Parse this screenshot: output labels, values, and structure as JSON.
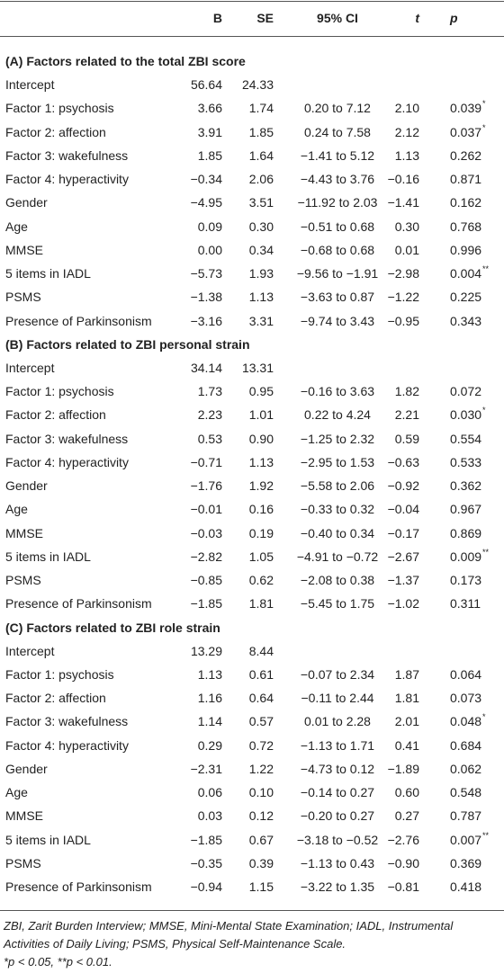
{
  "header": {
    "columns": [
      "B",
      "SE",
      "95% CI",
      "t",
      "p"
    ]
  },
  "sections": [
    {
      "title": "(A) Factors related to the total ZBI score",
      "rows": [
        [
          "Intercept",
          "56.64",
          "24.33"
        ],
        [
          "Factor 1: psychosis",
          "3.66",
          "1.74",
          "0.20 to 7.12",
          "2.10",
          "0.039",
          "*"
        ],
        [
          "Factor 2: affection",
          "3.91",
          "1.85",
          "0.24 to 7.58",
          "2.12",
          "0.037",
          "*"
        ],
        [
          "Factor 3: wakefulness",
          "1.85",
          "1.64",
          "−1.41 to 5.12",
          "1.13",
          "0.262"
        ],
        [
          "Factor 4: hyperactivity",
          "−0.34",
          "2.06",
          "−4.43 to 3.76",
          "−0.16",
          "0.871"
        ],
        [
          "Gender",
          "−4.95",
          "3.51",
          "−11.92 to 2.03",
          "−1.41",
          "0.162"
        ],
        [
          "Age",
          "0.09",
          "0.30",
          "−0.51 to 0.68",
          "0.30",
          "0.768"
        ],
        [
          "MMSE",
          "0.00",
          "0.34",
          "−0.68 to 0.68",
          "0.01",
          "0.996"
        ],
        [
          "5 items in IADL",
          "−5.73",
          "1.93",
          "−9.56 to −1.91",
          "−2.98",
          "0.004",
          "**"
        ],
        [
          "PSMS",
          "−1.38",
          "1.13",
          "−3.63 to 0.87",
          "−1.22",
          "0.225"
        ],
        [
          "Presence of Parkinsonism",
          "−3.16",
          "3.31",
          "−9.74 to 3.43",
          "−0.95",
          "0.343"
        ]
      ]
    },
    {
      "title": "(B) Factors related to ZBI personal strain",
      "rows": [
        [
          "Intercept",
          "34.14",
          "13.31"
        ],
        [
          "Factor 1: psychosis",
          "1.73",
          "0.95",
          "−0.16 to 3.63",
          "1.82",
          "0.072"
        ],
        [
          "Factor 2: affection",
          "2.23",
          "1.01",
          "0.22 to 4.24",
          "2.21",
          "0.030",
          "*"
        ],
        [
          "Factor 3: wakefulness",
          "0.53",
          "0.90",
          "−1.25 to 2.32",
          "0.59",
          "0.554"
        ],
        [
          "Factor 4: hyperactivity",
          "−0.71",
          "1.13",
          "−2.95 to 1.53",
          "−0.63",
          "0.533"
        ],
        [
          "Gender",
          "−1.76",
          "1.92",
          "−5.58 to 2.06",
          "−0.92",
          "0.362"
        ],
        [
          "Age",
          "−0.01",
          "0.16",
          "−0.33 to 0.32",
          "−0.04",
          "0.967"
        ],
        [
          "MMSE",
          "−0.03",
          "0.19",
          "−0.40 to 0.34",
          "−0.17",
          "0.869"
        ],
        [
          "5 items in IADL",
          "−2.82",
          "1.05",
          "−4.91 to −0.72",
          "−2.67",
          "0.009",
          "**"
        ],
        [
          "PSMS",
          "−0.85",
          "0.62",
          "−2.08 to 0.38",
          "−1.37",
          "0.173"
        ],
        [
          "Presence of Parkinsonism",
          "−1.85",
          "1.81",
          "−5.45 to 1.75",
          "−1.02",
          "0.311"
        ]
      ]
    },
    {
      "title": "(C) Factors related to ZBI role strain",
      "rows": [
        [
          "Intercept",
          "13.29",
          "8.44"
        ],
        [
          "Factor 1: psychosis",
          "1.13",
          "0.61",
          "−0.07 to 2.34",
          "1.87",
          "0.064"
        ],
        [
          "Factor 2: affection",
          "1.16",
          "0.64",
          "−0.11 to 2.44",
          "1.81",
          "0.073"
        ],
        [
          "Factor 3: wakefulness",
          "1.14",
          "0.57",
          "0.01 to 2.28",
          "2.01",
          "0.048",
          "*"
        ],
        [
          "Factor 4: hyperactivity",
          "0.29",
          "0.72",
          "−1.13 to 1.71",
          "0.41",
          "0.684"
        ],
        [
          "Gender",
          "−2.31",
          "1.22",
          "−4.73 to 0.12",
          "−1.89",
          "0.062"
        ],
        [
          "Age",
          "0.06",
          "0.10",
          "−0.14 to 0.27",
          "0.60",
          "0.548"
        ],
        [
          "MMSE",
          "0.03",
          "0.12",
          "−0.20 to 0.27",
          "0.27",
          "0.787"
        ],
        [
          "5 items in IADL",
          "−1.85",
          "0.67",
          "−3.18 to −0.52",
          "−2.76",
          "0.007",
          "**"
        ],
        [
          "PSMS",
          "−0.35",
          "0.39",
          "−1.13 to 0.43",
          "−0.90",
          "0.369"
        ],
        [
          "Presence of Parkinsonism",
          "−0.94",
          "1.15",
          "−3.22 to 1.35",
          "−0.81",
          "0.418"
        ]
      ]
    }
  ],
  "footnotes": [
    "ZBI, Zarit Burden Interview; MMSE, Mini-Mental State Examination; IADL, Instrumental Activities of Daily Living; PSMS, Physical Self-Maintenance Scale.",
    "*p < 0.05, **p < 0.01."
  ]
}
